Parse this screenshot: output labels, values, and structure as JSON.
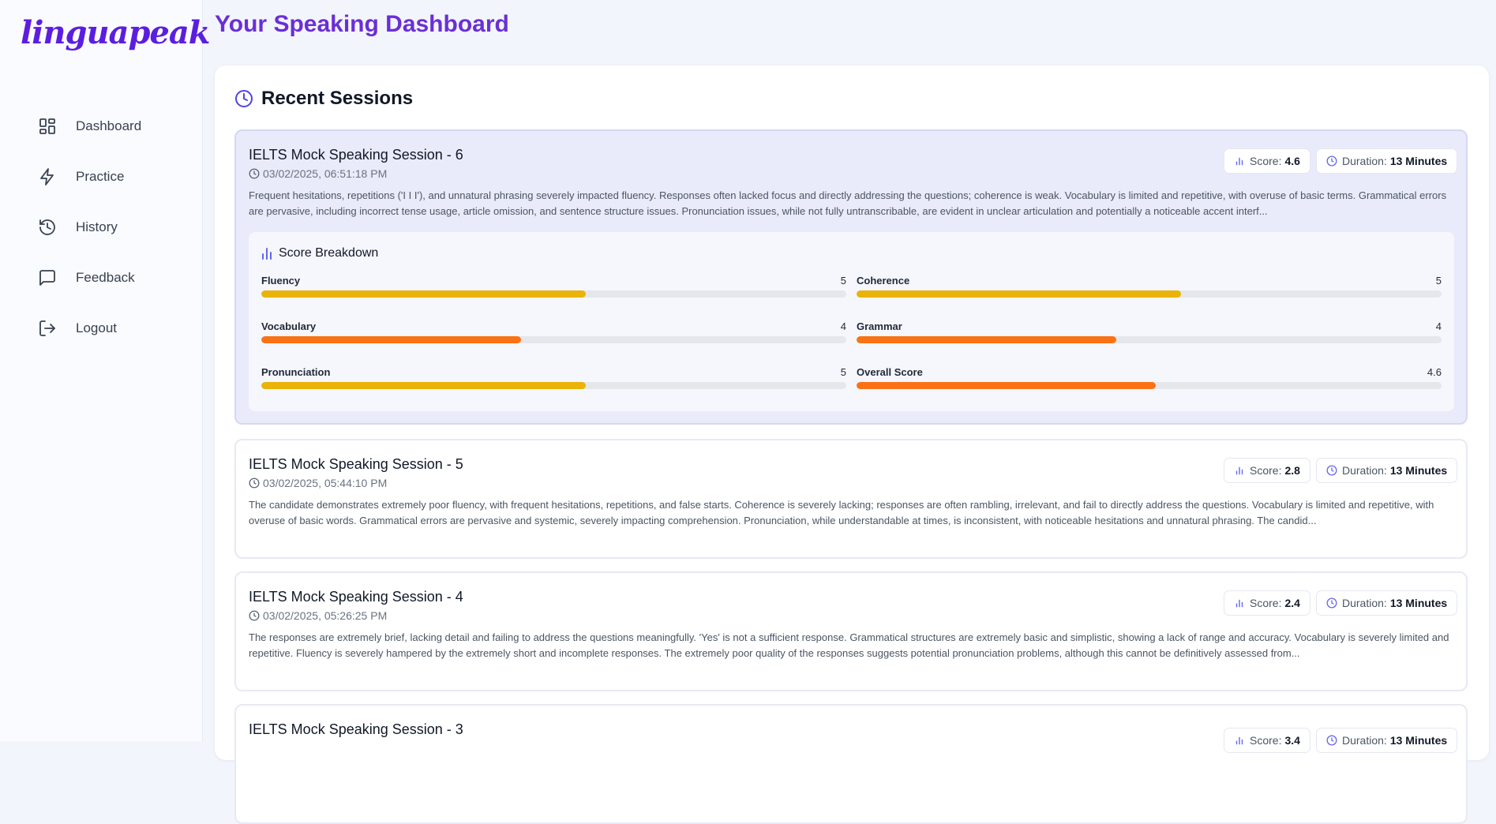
{
  "brand": "linguapeak",
  "nav": [
    {
      "label": "Dashboard",
      "icon": "dashboard-icon"
    },
    {
      "label": "Practice",
      "icon": "lightning-icon"
    },
    {
      "label": "History",
      "icon": "history-icon"
    },
    {
      "label": "Feedback",
      "icon": "message-icon"
    },
    {
      "label": "Logout",
      "icon": "logout-icon"
    }
  ],
  "page_title": "Your Speaking Dashboard",
  "recent": {
    "title": "Recent Sessions",
    "score_label": "Score:",
    "duration_label": "Duration:",
    "sessions": [
      {
        "title": "IELTS Mock Speaking Session - 6",
        "date": "03/02/2025, 06:51:18 PM",
        "score": "4.6",
        "duration": "13 Minutes",
        "description": "Frequent hesitations, repetitions ('I I I'), and unnatural phrasing severely impacted fluency. Responses often lacked focus and directly addressing the questions; coherence is weak. Vocabulary is limited and repetitive, with overuse of basic terms. Grammatical errors are pervasive, including incorrect tense usage, article omission, and sentence structure issues. Pronunciation issues, while not fully untranscribable, are evident in unclear articulation and potentially a noticeable accent interf...",
        "breakdown": {
          "title": "Score Breakdown",
          "metrics": [
            {
              "label": "Fluency",
              "value": "5",
              "fraction": 0.555,
              "color": "#eab308"
            },
            {
              "label": "Coherence",
              "value": "5",
              "fraction": 0.555,
              "color": "#eab308"
            },
            {
              "label": "Vocabulary",
              "value": "4",
              "fraction": 0.444,
              "color": "#f97316"
            },
            {
              "label": "Grammar",
              "value": "4",
              "fraction": 0.444,
              "color": "#f97316"
            },
            {
              "label": "Pronunciation",
              "value": "5",
              "fraction": 0.555,
              "color": "#eab308"
            },
            {
              "label": "Overall Score",
              "value": "4.6",
              "fraction": 0.511,
              "color": "#f97316"
            }
          ]
        }
      },
      {
        "title": "IELTS Mock Speaking Session - 5",
        "date": "03/02/2025, 05:44:10 PM",
        "score": "2.8",
        "duration": "13 Minutes",
        "description": "The candidate demonstrates extremely poor fluency, with frequent hesitations, repetitions, and false starts. Coherence is severely lacking; responses are often rambling, irrelevant, and fail to directly address the questions. Vocabulary is limited and repetitive, with overuse of basic words. Grammatical errors are pervasive and systemic, severely impacting comprehension. Pronunciation, while understandable at times, is inconsistent, with noticeable hesitations and unnatural phrasing. The candid..."
      },
      {
        "title": "IELTS Mock Speaking Session - 4",
        "date": "03/02/2025, 05:26:25 PM",
        "score": "2.4",
        "duration": "13 Minutes",
        "description": "The responses are extremely brief, lacking detail and failing to address the questions meaningfully. 'Yes' is not a sufficient response. Grammatical structures are extremely basic and simplistic, showing a lack of range and accuracy. Vocabulary is severely limited and repetitive. Fluency is severely hampered by the extremely short and incomplete responses. The extremely poor quality of the responses suggests potential pronunciation problems, although this cannot be definitively assessed from..."
      },
      {
        "title": "IELTS Mock Speaking Session - 3",
        "date": "",
        "score": "3.4",
        "duration": "13 Minutes",
        "description": ""
      }
    ]
  },
  "colors": {
    "accent": "#5b1ee0",
    "bar_mid": "#eab308",
    "bar_low": "#f97316"
  }
}
